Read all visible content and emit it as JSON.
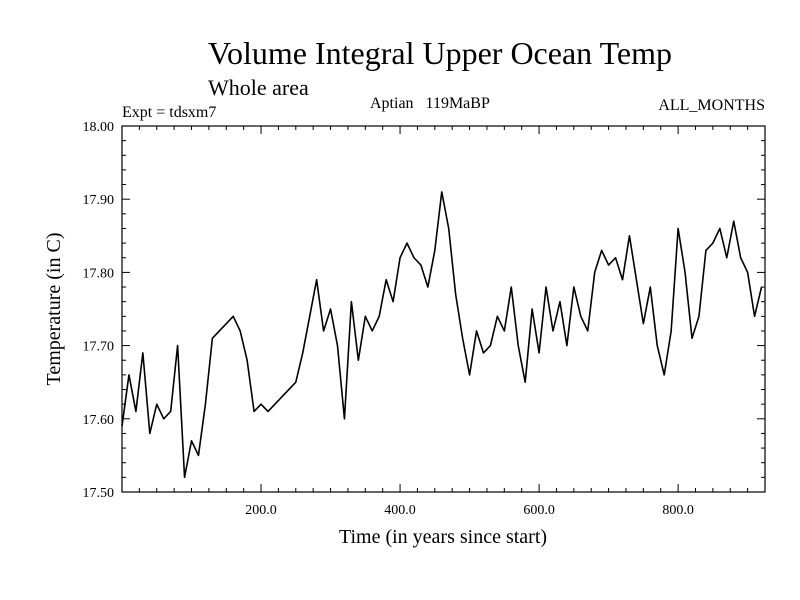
{
  "chart_data": {
    "type": "line",
    "title": "Volume Integral Upper Ocean Temp",
    "subtitle": "Whole area",
    "experiment_label": "Expt = tdsxm7",
    "period_label": "Aptian   119MaBP",
    "months_label": "ALL_MONTHS",
    "xlabel": "Time (in years since start)",
    "ylabel": "Temperature (in C)",
    "xlim": [
      0,
      925
    ],
    "ylim": [
      17.5,
      18.0
    ],
    "x_ticks": [
      200,
      400,
      600,
      800
    ],
    "x_tick_labels": [
      "200.0",
      "400.0",
      "600.0",
      "800.0"
    ],
    "y_ticks": [
      17.5,
      17.6,
      17.7,
      17.8,
      17.9,
      18.0
    ],
    "y_tick_labels": [
      "17.50",
      "17.60",
      "17.70",
      "17.80",
      "17.90",
      "18.00"
    ],
    "grid": false,
    "series": [
      {
        "name": "Volume integral upper ocean temperature",
        "x": [
          0,
          10,
          20,
          30,
          40,
          50,
          60,
          70,
          80,
          90,
          100,
          110,
          120,
          130,
          140,
          150,
          160,
          170,
          180,
          190,
          200,
          210,
          220,
          230,
          240,
          250,
          260,
          270,
          280,
          290,
          300,
          310,
          320,
          330,
          340,
          350,
          360,
          370,
          380,
          390,
          400,
          410,
          420,
          430,
          440,
          450,
          460,
          470,
          480,
          490,
          500,
          510,
          520,
          530,
          540,
          550,
          560,
          570,
          580,
          590,
          600,
          610,
          620,
          630,
          640,
          650,
          660,
          670,
          680,
          690,
          700,
          710,
          720,
          730,
          740,
          750,
          760,
          770,
          780,
          790,
          800,
          810,
          820,
          830,
          840,
          850,
          860,
          870,
          880,
          890,
          900,
          910,
          920
        ],
        "y": [
          17.59,
          17.66,
          17.61,
          17.69,
          17.58,
          17.62,
          17.6,
          17.61,
          17.7,
          17.52,
          17.57,
          17.55,
          17.62,
          17.71,
          17.72,
          17.73,
          17.74,
          17.72,
          17.68,
          17.61,
          17.62,
          17.61,
          17.62,
          17.63,
          17.64,
          17.65,
          17.69,
          17.74,
          17.79,
          17.72,
          17.75,
          17.7,
          17.6,
          17.76,
          17.68,
          17.74,
          17.72,
          17.74,
          17.79,
          17.76,
          17.82,
          17.84,
          17.82,
          17.81,
          17.78,
          17.83,
          17.91,
          17.86,
          17.77,
          17.71,
          17.66,
          17.72,
          17.69,
          17.7,
          17.74,
          17.72,
          17.78,
          17.7,
          17.65,
          17.75,
          17.69,
          17.78,
          17.72,
          17.76,
          17.7,
          17.78,
          17.74,
          17.72,
          17.8,
          17.83,
          17.81,
          17.82,
          17.79,
          17.85,
          17.79,
          17.73,
          17.78,
          17.7,
          17.66,
          17.72,
          17.86,
          17.8,
          17.71,
          17.74,
          17.83,
          17.84,
          17.86,
          17.82,
          17.87,
          17.82,
          17.8,
          17.74,
          17.78
        ]
      }
    ]
  }
}
